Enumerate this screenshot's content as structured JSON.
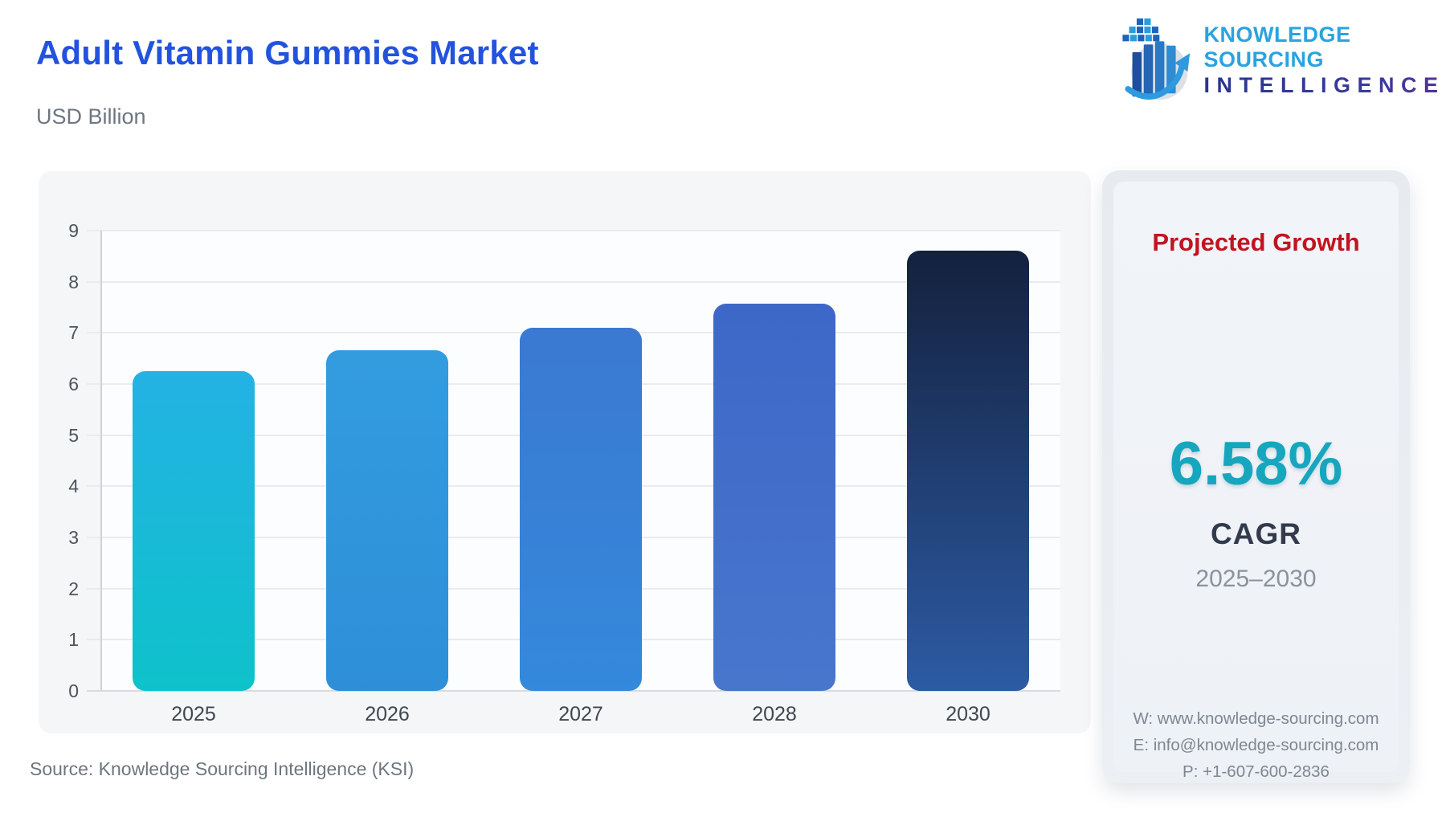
{
  "header": {
    "title": "Adult Vitamin Gummies Market",
    "subtitle": "USD Billion",
    "title_color": "#2353dd",
    "logo": {
      "line1": "KNOWLEDGE SOURCING",
      "line2": "INTELLIGENCE",
      "line1_color": "#2aa3df",
      "line2_color": "#27368f"
    }
  },
  "chart_data": {
    "type": "bar",
    "title": "Adult Vitamin Gummies Market",
    "unit_label": "USD Billion",
    "categories": [
      "2025",
      "2026",
      "2027",
      "2028",
      "2030"
    ],
    "values": [
      6.25,
      6.66,
      7.1,
      7.57,
      8.6
    ],
    "bar_gradients": [
      [
        "#24b2e4",
        "#0ec2ca"
      ],
      [
        "#339cdf",
        "#2e8fd8"
      ],
      [
        "#3b79d2",
        "#3489dc"
      ],
      [
        "#3e68c8",
        "#4876cd"
      ],
      [
        "#14213d",
        "#2c5ba4"
      ]
    ],
    "xlabel": "",
    "ylabel": "",
    "ylim": [
      0,
      9
    ],
    "ytick_step": 1,
    "grid": true,
    "legend": "none"
  },
  "growth_panel": {
    "heading": "Projected Growth",
    "heading_color": "#c11420",
    "value": "6.58%",
    "value_color": "#16a6be",
    "metric": "CAGR",
    "period": "2025–2030",
    "contact": {
      "website": "W: www.knowledge-sourcing.com",
      "email": "E: info@knowledge-sourcing.com",
      "phone": "P: +1-607-600-2836"
    }
  },
  "footer": {
    "source": "Source: Knowledge Sourcing Intelligence (KSI)"
  }
}
